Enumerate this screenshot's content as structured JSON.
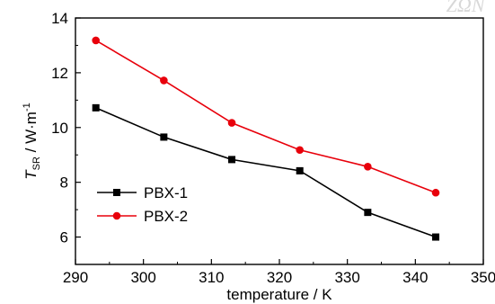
{
  "chart_data": {
    "type": "line",
    "title": "",
    "xlabel": "temperature / K",
    "ylabel": {
      "symbol": "T",
      "subscript": "SR",
      "unit": " / W·m",
      "superscript": "-1"
    },
    "xlim": [
      290,
      350
    ],
    "ylim": [
      5,
      14
    ],
    "xticks": [
      "290",
      "300",
      "310",
      "320",
      "330",
      "340",
      "350"
    ],
    "yticks": [
      "6",
      "8",
      "10",
      "12",
      "14"
    ],
    "grid": false,
    "legend_position": "lower-left",
    "series": [
      {
        "name": "PBX-1",
        "color": "#000000",
        "marker": "square",
        "x": [
          293,
          303,
          313,
          323,
          333,
          343
        ],
        "y": [
          10.72,
          9.65,
          8.83,
          8.42,
          6.9,
          6.0
        ]
      },
      {
        "name": "PBX-2",
        "color": "#e8000b",
        "marker": "circle",
        "x": [
          293,
          303,
          313,
          323,
          333,
          343
        ],
        "y": [
          13.18,
          11.72,
          10.17,
          9.18,
          8.57,
          7.62
        ]
      }
    ]
  },
  "watermark": {
    "text": "ΖΩΝ",
    "color": "#d8d8d8"
  }
}
